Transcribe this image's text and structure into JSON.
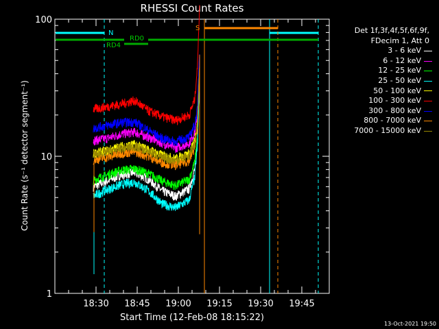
{
  "colors": {
    "background": "#000000",
    "axis": "#ffffff",
    "attenuator_bar": "#00aa00",
    "night_marker": "#00ffff",
    "saa_marker": "#ff8800"
  },
  "footer": {
    "timestamp": "13-Oct-2021 19:50"
  },
  "legend": {
    "header_line1": "Det 1f,3f,4f,5f,6f,9f,",
    "header_line2": "FDecim 1, Att 0",
    "position": "top-right, outside plot"
  },
  "annotations": {
    "night_label": "N",
    "saa_label": "S",
    "rd0_label": "RD0",
    "rd4_label": "RD4"
  },
  "chart_data": {
    "type": "line",
    "title": "RHESSI Count Rates",
    "xlabel": "Start Time (12-Feb-08 18:15:22)",
    "ylabel": "Count Rate (s⁻¹ detector segment⁻¹)",
    "y_scale": "log",
    "ylim": [
      1,
      100
    ],
    "y_ticks": [
      1,
      10,
      100
    ],
    "y_tick_labels": [
      "1",
      "10",
      "100"
    ],
    "xlim": [
      "18:15",
      "19:55"
    ],
    "x_ticks": [
      "18:30",
      "18:45",
      "19:00",
      "19:15",
      "19:30",
      "19:45"
    ],
    "grid": false,
    "series": [
      {
        "name": "3 - 6 keV",
        "color": "#ffffff",
        "x": [
          "18:29",
          "18:34",
          "18:39",
          "18:44",
          "18:49",
          "18:54",
          "18:59",
          "19:04",
          "19:06",
          "19:07"
        ],
        "values": [
          6.0,
          6.6,
          7.3,
          7.6,
          6.8,
          5.6,
          5.1,
          5.8,
          8.0,
          13.0
        ]
      },
      {
        "name": "6 - 12 keV",
        "color": "#ff00ff",
        "x": [
          "18:29",
          "18:34",
          "18:39",
          "18:44",
          "18:49",
          "18:54",
          "18:59",
          "19:04",
          "19:06",
          "19:07"
        ],
        "values": [
          13.0,
          13.5,
          14.5,
          15.0,
          13.8,
          12.5,
          11.5,
          12.5,
          15.0,
          20.0
        ]
      },
      {
        "name": "12 - 25 keV",
        "color": "#00ff00",
        "x": [
          "18:29",
          "18:34",
          "18:39",
          "18:44",
          "18:49",
          "18:54",
          "18:59",
          "19:04",
          "19:06",
          "19:07"
        ],
        "values": [
          6.7,
          7.3,
          7.9,
          8.1,
          7.5,
          6.6,
          6.1,
          6.8,
          9.0,
          14.0
        ]
      },
      {
        "name": "25 - 50 keV",
        "color": "#00ffff",
        "x": [
          "18:29",
          "18:34",
          "18:39",
          "18:44",
          "18:49",
          "18:54",
          "18:59",
          "19:04",
          "19:06",
          "19:07"
        ],
        "values": [
          5.1,
          5.7,
          6.2,
          6.5,
          5.6,
          4.5,
          4.2,
          4.8,
          7.0,
          12.0
        ]
      },
      {
        "name": "50 - 100 keV",
        "color": "#ffff00",
        "x": [
          "18:29",
          "18:34",
          "18:39",
          "18:44",
          "18:49",
          "18:54",
          "18:59",
          "19:04",
          "19:06",
          "19:07"
        ],
        "values": [
          10.5,
          11.0,
          11.8,
          12.2,
          11.2,
          10.2,
          9.6,
          10.5,
          13.0,
          17.0
        ]
      },
      {
        "name": "100 - 300 keV",
        "color": "#ff0000",
        "x": [
          "18:29",
          "18:34",
          "18:39",
          "18:44",
          "18:49",
          "18:54",
          "18:59",
          "19:04",
          "19:06",
          "19:07"
        ],
        "values": [
          22.0,
          23.0,
          24.0,
          25.5,
          21.5,
          19.5,
          18.3,
          20.0,
          26.0,
          45.0
        ]
      },
      {
        "name": "300 - 800 keV",
        "color": "#0000ff",
        "x": [
          "18:29",
          "18:34",
          "18:39",
          "18:44",
          "18:49",
          "18:54",
          "18:59",
          "19:04",
          "19:06",
          "19:07"
        ],
        "values": [
          16.0,
          16.8,
          17.6,
          17.8,
          15.5,
          13.5,
          12.8,
          13.8,
          17.0,
          22.0
        ]
      },
      {
        "name": "800 - 7000 keV",
        "color": "#ff8800",
        "x": [
          "18:29",
          "18:34",
          "18:39",
          "18:44",
          "18:49",
          "18:54",
          "18:59",
          "19:04",
          "19:06",
          "19:07"
        ],
        "values": [
          9.4,
          9.8,
          10.5,
          10.8,
          10.0,
          9.0,
          8.6,
          9.3,
          11.5,
          16.0
        ]
      },
      {
        "name": "7000 - 15000 keV",
        "color": "#998800",
        "x": [
          "18:29",
          "18:34",
          "18:39",
          "18:44",
          "18:49",
          "18:54",
          "18:59",
          "19:04",
          "19:06",
          "19:07"
        ],
        "values": [
          10.2,
          10.8,
          11.4,
          11.8,
          10.9,
          9.8,
          9.3,
          10.1,
          12.5,
          17.0
        ]
      }
    ]
  }
}
